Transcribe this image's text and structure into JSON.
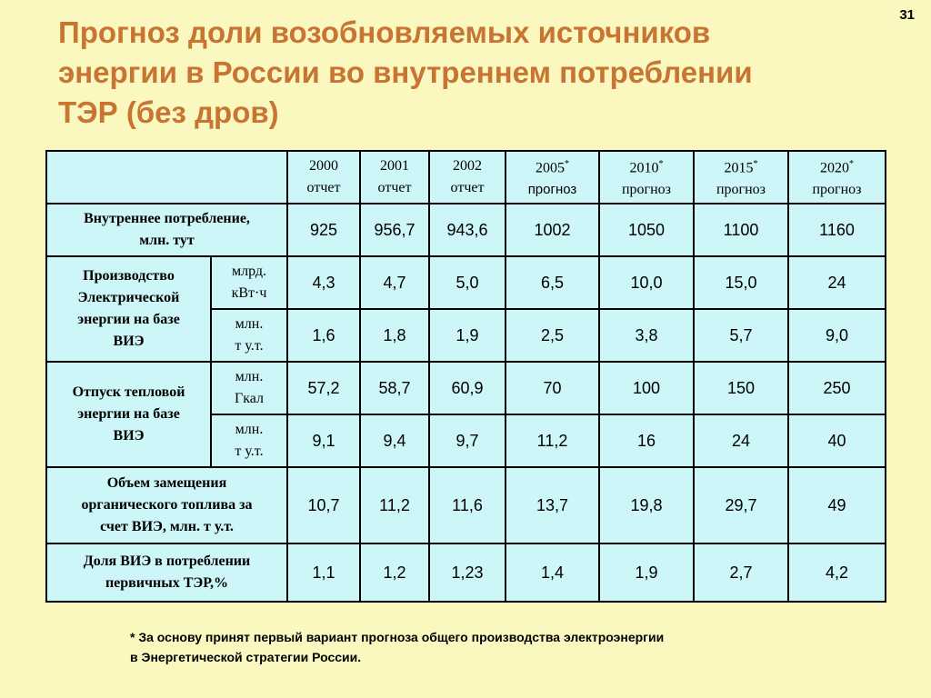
{
  "slide_number": "31",
  "title": {
    "line1": "Прогноз доли возобновляемых источников",
    "line2": "энергии в России во внутреннем потреблении",
    "line3": "ТЭР (без дров)"
  },
  "table": {
    "columns": [
      {
        "year": "2000",
        "star": "",
        "kind": "отчет"
      },
      {
        "year": "2001",
        "star": "",
        "kind": "отчет"
      },
      {
        "year": "2002",
        "star": "",
        "kind": "отчет"
      },
      {
        "year": "2005",
        "star": "*",
        "kind": "прогноз"
      },
      {
        "year": "2010",
        "star": "*",
        "kind": "прогноз"
      },
      {
        "year": "2015",
        "star": "*",
        "kind": "прогноз"
      },
      {
        "year": "2020",
        "star": "*",
        "kind": "прогноз"
      }
    ],
    "rows": [
      {
        "label_l1": "Внутреннее потребление,",
        "label_l2": "млн. тут",
        "values": [
          "925",
          "956,7",
          "943,6",
          "1002",
          "1050",
          "1100",
          "1160"
        ]
      },
      {
        "group_l1": "Производство",
        "group_l2": "Электрической",
        "group_l3": "энергии на базе",
        "group_l4": "ВИЭ",
        "unit_l1": "млрд.",
        "unit_l2": "кВт·ч",
        "values": [
          "4,3",
          "4,7",
          "5,0",
          "6,5",
          "10,0",
          "15,0",
          "24"
        ]
      },
      {
        "unit_l1": "млн.",
        "unit_l2": "т у.т.",
        "values": [
          "1,6",
          "1,8",
          "1,9",
          "2,5",
          "3,8",
          "5,7",
          "9,0"
        ]
      },
      {
        "group_l1": "Отпуск тепловой",
        "group_l2": "энергии на базе",
        "group_l3": "ВИЭ",
        "unit_l1": "млн.",
        "unit_l2": "Гкал",
        "values": [
          "57,2",
          "58,7",
          "60,9",
          "70",
          "100",
          "150",
          "250"
        ]
      },
      {
        "unit_l1": "млн.",
        "unit_l2": "т у.т.",
        "values": [
          "9,1",
          "9,4",
          "9,7",
          "11,2",
          "16",
          "24",
          "40"
        ]
      },
      {
        "label_l1": "Объем замещения",
        "label_l2": "органического топлива за",
        "label_l3": "счет ВИЭ, млн. т у.т.",
        "values": [
          "10,7",
          "11,2",
          "11,6",
          "13,7",
          "19,8",
          "29,7",
          "49"
        ]
      },
      {
        "label_l1": "Доля ВИЭ в потреблении",
        "label_l2": "первичных ТЭР,%",
        "values": [
          "1,1",
          "1,2",
          "1,23",
          "1,4",
          "1,9",
          "2,7",
          "4,2"
        ]
      }
    ]
  },
  "footnote": {
    "line1": "* За основу принят первый вариант прогноза общего производства электроэнергии",
    "line2": "в Энергетической стратегии России."
  }
}
